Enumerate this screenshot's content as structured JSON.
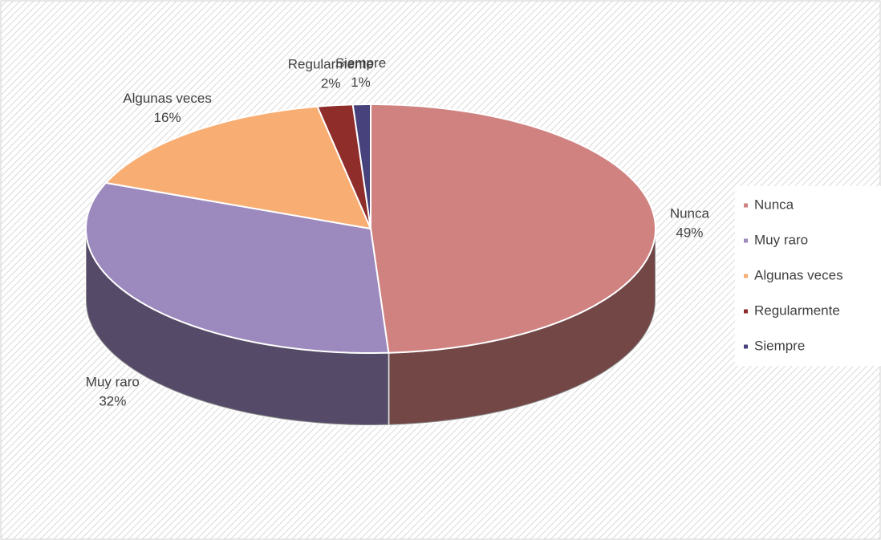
{
  "chart_data": {
    "type": "pie",
    "categories": [
      "Nunca",
      "Muy raro",
      "Algunas veces",
      "Regularmente",
      "Siempre"
    ],
    "values": [
      49,
      32,
      16,
      2,
      1
    ],
    "value_labels": [
      "49%",
      "32%",
      "16%",
      "2%",
      "1%"
    ],
    "colors": [
      "#cf8280",
      "#9c89bd",
      "#f8ad73",
      "#8f2d2b",
      "#47427c"
    ],
    "legend": "right"
  }
}
